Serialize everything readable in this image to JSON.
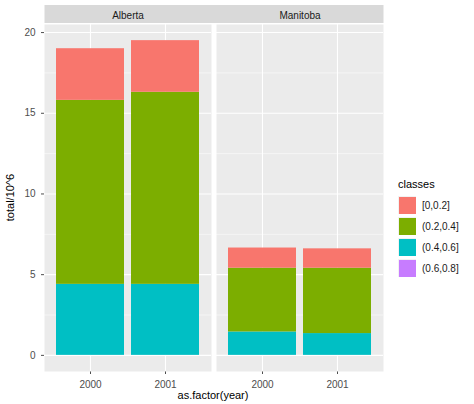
{
  "chart_data": {
    "type": "bar",
    "stacked": true,
    "facets": [
      "Alberta",
      "Manitoba"
    ],
    "categories": [
      "2000",
      "2001"
    ],
    "xlabel": "as.factor(year)",
    "ylabel": "total/10^6",
    "legend_title": "classes",
    "legend": "right",
    "grid": true,
    "ylim": [
      -1,
      20.5
    ],
    "yticks": [
      0,
      5,
      10,
      15,
      20
    ],
    "series": [
      {
        "name": "[0,0.2]",
        "color": "#F8766D",
        "values": [
          [
            3.2,
            3.2
          ],
          [
            1.25,
            1.2
          ]
        ]
      },
      {
        "name": "(0.2,0.4]",
        "color": "#7CAE00",
        "values": [
          [
            11.4,
            11.9
          ],
          [
            3.95,
            4.05
          ]
        ]
      },
      {
        "name": "(0.4,0.6]",
        "color": "#00BFC4",
        "values": [
          [
            4.4,
            4.4
          ],
          [
            1.45,
            1.35
          ]
        ]
      },
      {
        "name": "(0.6,0.8]",
        "color": "#C77CFF",
        "values": [
          [
            0,
            0
          ],
          [
            0,
            0
          ]
        ]
      }
    ]
  }
}
